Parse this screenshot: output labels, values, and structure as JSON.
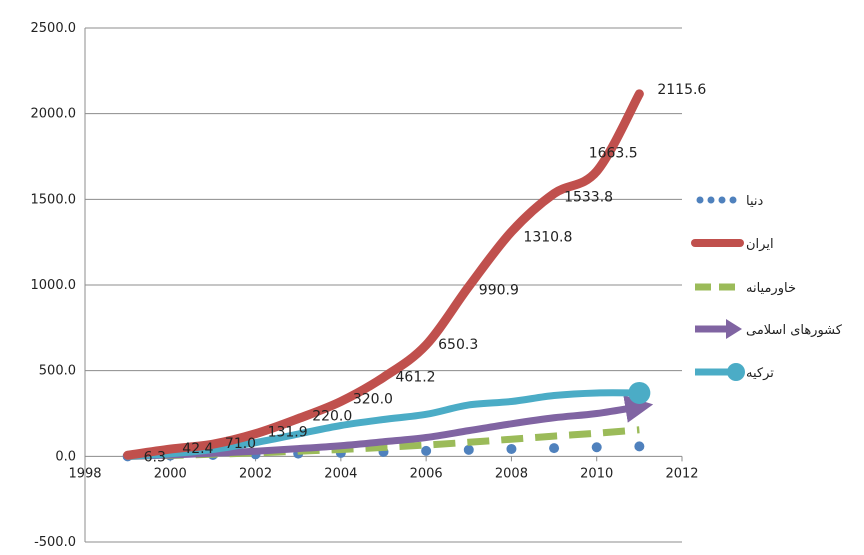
{
  "chart_data": {
    "type": "line",
    "title": "",
    "xlabel": "",
    "ylabel": "",
    "xlim": [
      1998,
      2012
    ],
    "ylim": [
      -500,
      2500
    ],
    "x_ticks": [
      "1998",
      "2000",
      "2002",
      "2004",
      "2006",
      "2008",
      "2010",
      "2012"
    ],
    "y_ticks": [
      "2500.0",
      "2000.0",
      "1500.0",
      "1000.0",
      "500.0",
      "0.0",
      "-500.0"
    ],
    "grid": true,
    "legend_position": "right",
    "x": [
      1999,
      2000,
      2001,
      2002,
      2003,
      2004,
      2005,
      2006,
      2007,
      2008,
      2009,
      2010,
      2011
    ],
    "series": [
      {
        "name": "دنیا",
        "color": "#4f81bd",
        "style": "dotted",
        "values": [
          0,
          4,
          8,
          12,
          16,
          20,
          26,
          32,
          38,
          43,
          48,
          53,
          58
        ]
      },
      {
        "name": "ایران",
        "color": "#c0504d",
        "style": "solid",
        "values": [
          6.3,
          42.4,
          71.0,
          131.9,
          220.0,
          320.0,
          461.2,
          650.3,
          990.9,
          1310.8,
          1533.8,
          1663.5,
          2115.6
        ],
        "labels": [
          "6.3",
          "42.4",
          "71.0",
          "131.9",
          "220.0",
          "320.0",
          "461.2",
          "650.3",
          "990.9",
          "1310.8",
          "1533.8",
          "1663.5",
          "2115.6"
        ]
      },
      {
        "name": "خاورمیانه",
        "color": "#9bbb59",
        "style": "dashed",
        "values": [
          0,
          5,
          12,
          20,
          30,
          40,
          52,
          66,
          82,
          100,
          118,
          135,
          155
        ]
      },
      {
        "name": "کشورهای اسلامی",
        "color": "#8064a2",
        "style": "arrow",
        "values": [
          0,
          8,
          18,
          30,
          45,
          62,
          85,
          110,
          150,
          190,
          225,
          250,
          290
        ]
      },
      {
        "name": "ترکیه",
        "color": "#4bacc6",
        "style": "circle-end",
        "values": [
          0,
          15,
          40,
          80,
          130,
          180,
          215,
          245,
          300,
          320,
          355,
          370,
          370
        ]
      }
    ]
  }
}
